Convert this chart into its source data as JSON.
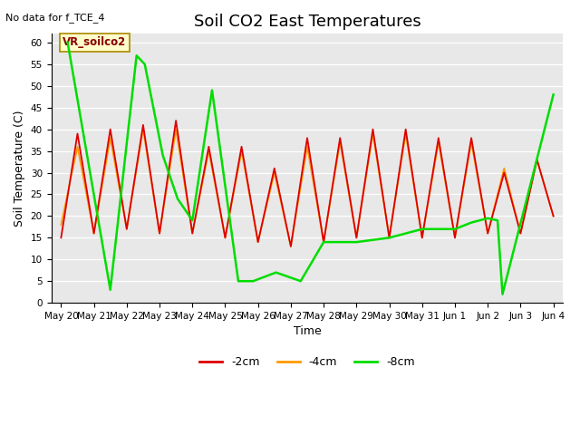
{
  "title": "Soil CO2 East Temperatures",
  "ylabel": "Soil Temperature (C)",
  "xlabel": "Time",
  "no_data_text": "No data for f_TCE_4",
  "vr_label": "VR_soilco2",
  "ylim": [
    0,
    62
  ],
  "xlim": [
    -0.3,
    15.3
  ],
  "legend_entries": [
    "-2cm",
    "-4cm",
    "-8cm"
  ],
  "legend_colors": [
    "#dd0000",
    "#ff9900",
    "#00dd00"
  ],
  "axes_facecolor": "#e8e8e8",
  "grid_color": "#ffffff",
  "title_fontsize": 13,
  "axis_label_fontsize": 9,
  "tick_fontsize": 7.5,
  "x_tick_labels": [
    "May 20",
    "May 21",
    "May 22",
    "May 23",
    "May 24",
    "May 25",
    "May 26",
    "May 27",
    "May 28",
    "May 29",
    "May 30",
    "May 31",
    "Jun 1",
    "Jun 2",
    "Jun 3",
    "Jun 4"
  ],
  "red_x": [
    0.0,
    0.5,
    1.0,
    1.5,
    2.0,
    2.5,
    3.0,
    3.5,
    4.0,
    4.5,
    5.0,
    5.5,
    6.0,
    6.5,
    7.0,
    7.5,
    8.0,
    8.5,
    9.0,
    9.5,
    10.0,
    10.5,
    11.0,
    11.5,
    12.0,
    12.5,
    13.0,
    13.5,
    14.0,
    14.5,
    15.0
  ],
  "red_y": [
    15,
    39,
    16,
    40,
    17,
    41,
    16,
    42,
    16,
    36,
    15,
    36,
    14,
    31,
    13,
    38,
    14,
    38,
    15,
    40,
    15,
    40,
    15,
    38,
    15,
    38,
    16,
    30,
    16,
    33,
    20
  ],
  "orange_x": [
    0.0,
    0.5,
    1.0,
    1.5,
    2.0,
    2.5,
    3.0,
    3.5,
    4.0,
    4.5,
    5.0,
    5.5,
    6.0,
    6.5,
    7.0,
    7.5,
    8.0,
    8.5,
    9.0,
    9.5,
    10.0,
    10.5,
    11.0,
    11.5,
    12.0,
    12.5,
    13.0,
    13.5,
    14.0,
    14.5,
    15.0
  ],
  "orange_y": [
    18,
    36,
    16,
    38,
    17,
    40,
    16,
    40,
    16,
    35,
    15,
    35,
    14,
    30,
    13,
    36,
    14,
    37,
    15,
    39,
    15,
    39,
    15,
    37,
    15,
    37,
    16,
    31,
    16,
    33,
    20
  ],
  "green_x": [
    0.2,
    1.5,
    2.3,
    2.55,
    3.1,
    3.55,
    4.0,
    4.6,
    5.4,
    5.85,
    6.55,
    7.3,
    8.0,
    9.0,
    10.0,
    11.0,
    11.5,
    12.0,
    12.5,
    13.0,
    13.3,
    13.45,
    15.0
  ],
  "green_y": [
    60,
    3,
    57,
    55,
    34,
    24,
    19,
    49,
    5,
    5,
    7,
    5,
    14,
    14,
    15,
    17,
    17,
    17,
    18.5,
    19.5,
    19,
    2,
    48
  ]
}
